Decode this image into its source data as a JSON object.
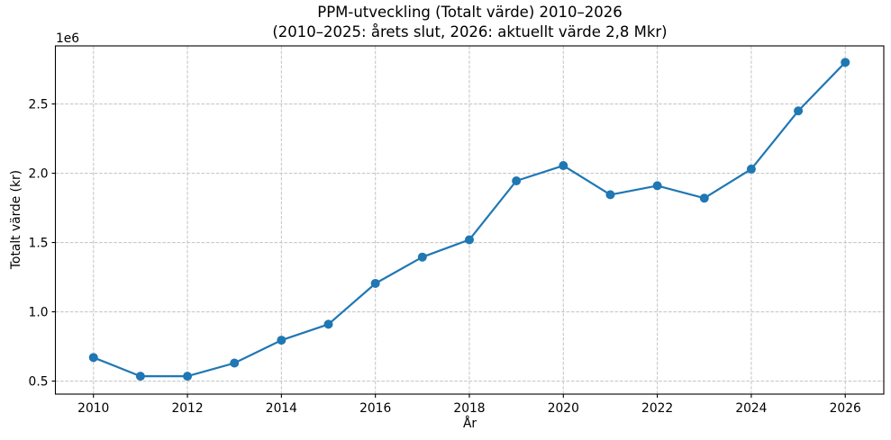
{
  "chart_data": {
    "type": "line",
    "title": "PPM-utveckling (Totalt värde) 2010–2026",
    "subtitle": "(2010–2025: årets slut, 2026: aktuellt värde 2,8 Mkr)",
    "xlabel": "År",
    "ylabel": "Totalt värde (kr)",
    "y_offset_label": "1e6",
    "series_name": "Totalt värde",
    "x": [
      2010,
      2011,
      2012,
      2013,
      2014,
      2015,
      2016,
      2017,
      2018,
      2019,
      2020,
      2021,
      2022,
      2023,
      2024,
      2025,
      2026
    ],
    "values": [
      670000,
      535000,
      535000,
      630000,
      795000,
      910000,
      1205000,
      1395000,
      1520000,
      1945000,
      2055000,
      1845000,
      1910000,
      1820000,
      2030000,
      2450000,
      2800000
    ],
    "xticks": [
      2010,
      2012,
      2014,
      2016,
      2018,
      2020,
      2022,
      2024,
      2026
    ],
    "yticks": [
      {
        "value": 500000,
        "label": "0.5"
      },
      {
        "value": 1000000,
        "label": "1.0"
      },
      {
        "value": 1500000,
        "label": "1.5"
      },
      {
        "value": 2000000,
        "label": "2.0"
      },
      {
        "value": 2500000,
        "label": "2.5"
      }
    ],
    "xlim": [
      2009.19,
      2026.82
    ],
    "ylim": [
      406000,
      2919000
    ],
    "grid": true,
    "legend": false,
    "line_color": "#1f77b4",
    "marker": "o",
    "grid_color": "#c9c9c9",
    "axis_color": "#000000",
    "background": "#ffffff"
  }
}
